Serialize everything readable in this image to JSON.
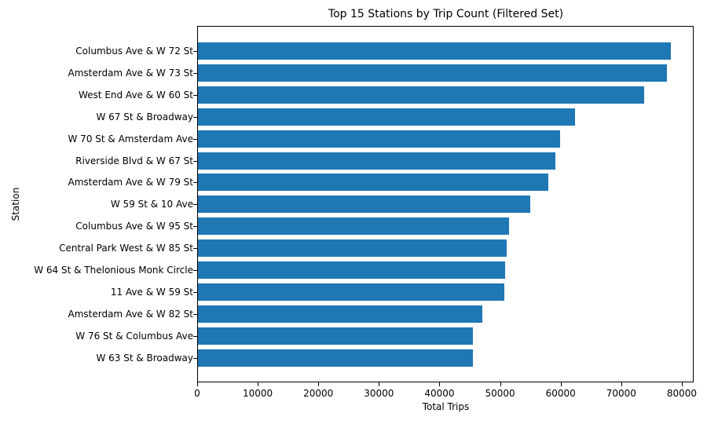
{
  "chart_data": {
    "type": "bar",
    "orientation": "horizontal",
    "title": "Top 15 Stations by Trip Count (Filtered Set)",
    "xlabel": "Total Trips",
    "ylabel": "Station",
    "xlim": [
      0,
      81950
    ],
    "xticks": [
      0,
      10000,
      20000,
      30000,
      40000,
      50000,
      60000,
      70000,
      80000
    ],
    "grid": false,
    "color": "#1f77b4",
    "categories": [
      "Columbus Ave & W 72 St",
      "Amsterdam Ave & W 73 St",
      "West End Ave & W 60 St",
      "W 67 St & Broadway",
      "W 70 St & Amsterdam Ave",
      "Riverside Blvd & W 67 St",
      "Amsterdam Ave & W 79 St",
      "W 59 St & 10 Ave",
      "Columbus Ave & W 95 St",
      "Central Park West & W 85 St",
      "W 64 St & Thelonious Monk Circle",
      "11 Ave & W 59 St",
      "Amsterdam Ave & W 82 St",
      "W 76 St & Columbus Ave",
      "W 63 St & Broadway"
    ],
    "values": [
      78100,
      77400,
      73700,
      62200,
      59800,
      59000,
      57800,
      54900,
      51400,
      51000,
      50700,
      50600,
      46900,
      45400,
      45400
    ]
  }
}
